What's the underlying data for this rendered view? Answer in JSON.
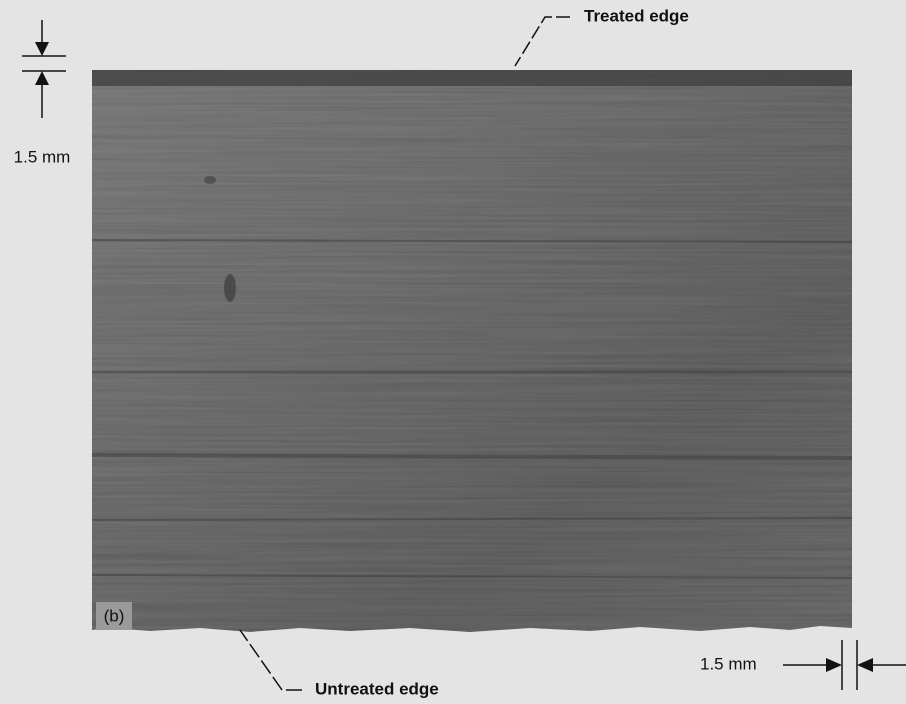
{
  "figure": {
    "panel_label": "(b)",
    "top_label": "Treated edge",
    "bottom_label": "Untreated edge",
    "left_dimension": "1.5 mm",
    "right_dimension": "1.5 mm"
  }
}
